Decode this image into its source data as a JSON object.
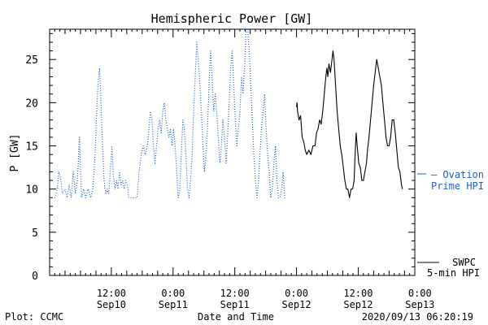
{
  "chart_data": {
    "type": "line",
    "title": "Hemispheric Power [GW]",
    "ylabel": "P [GW]",
    "xlabel": "Date and Time",
    "ylim": [
      0,
      28.5
    ],
    "xlim": [
      0,
      71
    ],
    "yticks": [
      0,
      5,
      10,
      15,
      20,
      25
    ],
    "xticks": [
      {
        "x": 12,
        "line1": "12:00",
        "line2": "Sep10"
      },
      {
        "x": 24,
        "line1": "0:00",
        "line2": "Sep11"
      },
      {
        "x": 36,
        "line1": "12:00",
        "line2": "Sep11"
      },
      {
        "x": 48,
        "line1": "0:00",
        "line2": "Sep12"
      },
      {
        "x": 60,
        "line1": "12:00",
        "line2": "Sep12"
      },
      {
        "x": 72,
        "line1": "0:00",
        "line2": "Sep13"
      }
    ],
    "grid": false,
    "legend_position": "right",
    "series": [
      {
        "name": "SWPC 5-min HPI",
        "color": "#000000",
        "style": "solid",
        "points": [
          [
            48.0,
            19.5
          ],
          [
            48.1,
            20
          ],
          [
            48.2,
            19
          ],
          [
            48.5,
            18
          ],
          [
            48.8,
            18.5
          ],
          [
            49.1,
            16
          ],
          [
            49.4,
            15.5
          ],
          [
            49.7,
            14.5
          ],
          [
            50.0,
            14
          ],
          [
            50.4,
            14.5
          ],
          [
            50.8,
            14
          ],
          [
            51.2,
            15
          ],
          [
            51.6,
            15
          ],
          [
            51.9,
            16.5
          ],
          [
            52.2,
            17
          ],
          [
            52.5,
            18
          ],
          [
            52.8,
            17.5
          ],
          [
            53.1,
            19
          ],
          [
            53.4,
            21
          ],
          [
            53.7,
            23
          ],
          [
            53.9,
            24
          ],
          [
            54.1,
            23
          ],
          [
            54.3,
            24.5
          ],
          [
            54.6,
            23.5
          ],
          [
            54.9,
            25
          ],
          [
            55.1,
            26
          ],
          [
            55.3,
            25
          ],
          [
            55.6,
            22
          ],
          [
            55.9,
            19
          ],
          [
            56.2,
            17
          ],
          [
            56.5,
            15
          ],
          [
            56.8,
            14
          ],
          [
            57.1,
            12.5
          ],
          [
            57.4,
            11
          ],
          [
            57.7,
            10
          ],
          [
            58.0,
            10
          ],
          [
            58.3,
            9
          ],
          [
            58.6,
            10
          ],
          [
            58.9,
            10
          ],
          [
            59.2,
            11
          ],
          [
            59.4,
            14
          ],
          [
            59.6,
            16.5
          ],
          [
            59.8,
            15
          ],
          [
            60.1,
            13
          ],
          [
            60.4,
            12.5
          ],
          [
            60.7,
            11
          ],
          [
            61.0,
            11
          ],
          [
            61.3,
            12
          ],
          [
            61.6,
            13
          ],
          [
            61.8,
            14.5
          ],
          [
            62.1,
            16
          ],
          [
            62.4,
            18
          ],
          [
            62.7,
            20
          ],
          [
            63.0,
            22
          ],
          [
            63.3,
            23.5
          ],
          [
            63.6,
            25
          ],
          [
            63.9,
            24
          ],
          [
            64.2,
            23
          ],
          [
            64.5,
            22
          ],
          [
            64.8,
            20
          ],
          [
            65.1,
            18
          ],
          [
            65.4,
            16
          ],
          [
            65.7,
            15
          ],
          [
            66.0,
            15
          ],
          [
            66.3,
            16
          ],
          [
            66.6,
            18
          ],
          [
            66.9,
            18
          ],
          [
            67.2,
            16.5
          ],
          [
            67.5,
            14.5
          ],
          [
            67.8,
            12.5
          ],
          [
            68.1,
            12
          ],
          [
            68.4,
            10.5
          ],
          [
            68.6,
            10
          ]
        ]
      },
      {
        "name": "Ovation Prime HPI",
        "color": "#1f5fd0",
        "style": "dotted",
        "points": [
          [
            0.0,
            9
          ],
          [
            1.0,
            9
          ],
          [
            1.5,
            10
          ],
          [
            1.8,
            12
          ],
          [
            2.2,
            11
          ],
          [
            2.5,
            9.5
          ],
          [
            3.0,
            10
          ],
          [
            3.4,
            9
          ],
          [
            3.8,
            10.5
          ],
          [
            4.2,
            9
          ],
          [
            4.6,
            12
          ],
          [
            5.0,
            9.5
          ],
          [
            5.4,
            11
          ],
          [
            5.8,
            16
          ],
          [
            6.2,
            9
          ],
          [
            6.6,
            10
          ],
          [
            7.0,
            9
          ],
          [
            7.5,
            10
          ],
          [
            8.0,
            9
          ],
          [
            8.4,
            10
          ],
          [
            8.8,
            13.5
          ],
          [
            9.1,
            18
          ],
          [
            9.4,
            22
          ],
          [
            9.7,
            24
          ],
          [
            10.0,
            20
          ],
          [
            10.3,
            15
          ],
          [
            10.6,
            11
          ],
          [
            10.9,
            9.5
          ],
          [
            11.2,
            10
          ],
          [
            11.5,
            9.5
          ],
          [
            11.8,
            12
          ],
          [
            12.1,
            15
          ],
          [
            12.4,
            11.5
          ],
          [
            12.7,
            10
          ],
          [
            13.0,
            11
          ],
          [
            13.3,
            10
          ],
          [
            13.6,
            12
          ],
          [
            13.9,
            10.5
          ],
          [
            14.2,
            11
          ],
          [
            14.5,
            10
          ],
          [
            14.8,
            11
          ],
          [
            15.1,
            10.5
          ],
          [
            15.4,
            9
          ],
          [
            16.0,
            9
          ],
          [
            17.0,
            9
          ],
          [
            17.4,
            12
          ],
          [
            17.8,
            14
          ],
          [
            18.2,
            15
          ],
          [
            18.6,
            14
          ],
          [
            19.0,
            15
          ],
          [
            19.3,
            17
          ],
          [
            19.6,
            19
          ],
          [
            19.9,
            18
          ],
          [
            20.2,
            15
          ],
          [
            20.5,
            13
          ],
          [
            20.8,
            15
          ],
          [
            21.1,
            17
          ],
          [
            21.4,
            18
          ],
          [
            21.7,
            16.5
          ],
          [
            22.0,
            19
          ],
          [
            22.3,
            20
          ],
          [
            22.6,
            18
          ],
          [
            22.9,
            17
          ],
          [
            23.2,
            16
          ],
          [
            23.5,
            17
          ],
          [
            23.8,
            15
          ],
          [
            24.1,
            17
          ],
          [
            24.4,
            15
          ],
          [
            24.7,
            12
          ],
          [
            25.0,
            9
          ],
          [
            25.3,
            10
          ],
          [
            25.6,
            14
          ],
          [
            25.9,
            18
          ],
          [
            26.2,
            17
          ],
          [
            26.5,
            14
          ],
          [
            26.8,
            10
          ],
          [
            27.1,
            9
          ],
          [
            27.4,
            11
          ],
          [
            27.7,
            14
          ],
          [
            28.0,
            19
          ],
          [
            28.3,
            23
          ],
          [
            28.6,
            27
          ],
          [
            28.9,
            25
          ],
          [
            29.2,
            22
          ],
          [
            29.5,
            19
          ],
          [
            29.8,
            15
          ],
          [
            30.1,
            12
          ],
          [
            30.4,
            14
          ],
          [
            30.7,
            17
          ],
          [
            31.0,
            22
          ],
          [
            31.3,
            26
          ],
          [
            31.6,
            23
          ],
          [
            31.9,
            19
          ],
          [
            32.2,
            21
          ],
          [
            32.5,
            19
          ],
          [
            32.8,
            16
          ],
          [
            33.1,
            13
          ],
          [
            33.4,
            15
          ],
          [
            33.7,
            18
          ],
          [
            34.0,
            16
          ],
          [
            34.3,
            13
          ],
          [
            34.6,
            16
          ],
          [
            34.9,
            20
          ],
          [
            35.2,
            24
          ],
          [
            35.5,
            26
          ],
          [
            35.8,
            22
          ],
          [
            36.1,
            18
          ],
          [
            36.4,
            15
          ],
          [
            36.7,
            17
          ],
          [
            37.0,
            19
          ],
          [
            37.3,
            23
          ],
          [
            37.6,
            21
          ],
          [
            37.9,
            24
          ],
          [
            38.2,
            28.5
          ],
          [
            38.5,
            28.5
          ],
          [
            38.8,
            26
          ],
          [
            39.1,
            22
          ],
          [
            39.4,
            18
          ],
          [
            39.7,
            14
          ],
          [
            40.0,
            11
          ],
          [
            40.3,
            9
          ],
          [
            40.6,
            11
          ],
          [
            40.9,
            14
          ],
          [
            41.2,
            17
          ],
          [
            41.5,
            19
          ],
          [
            41.8,
            21
          ],
          [
            42.1,
            17
          ],
          [
            42.4,
            14
          ],
          [
            42.7,
            12
          ],
          [
            43.0,
            9
          ],
          [
            43.3,
            10
          ],
          [
            43.6,
            13
          ],
          [
            43.9,
            15
          ],
          [
            44.2,
            11
          ],
          [
            44.5,
            9
          ],
          [
            44.8,
            9
          ],
          [
            45.1,
            10
          ],
          [
            45.4,
            12
          ],
          [
            45.7,
            9
          ],
          [
            46.0,
            9
          ]
        ]
      }
    ],
    "legend": {
      "swpc_line1": "SWPC",
      "swpc_line2": "5-min HPI",
      "ovation_line1": "— Ovation",
      "ovation_line2": "Prime HPI"
    },
    "footer": {
      "left": "Plot: CCMC",
      "right": "2020/09/13 06:20:19"
    }
  }
}
